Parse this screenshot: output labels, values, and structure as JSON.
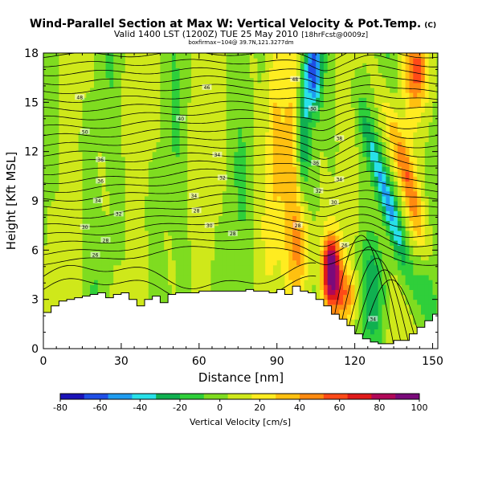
{
  "chart_data": {
    "type": "heatmap",
    "title": "Wind-Parallel Section at Max W: Vertical Velocity & Pot.Temp.",
    "title_mark": "(C)",
    "subtitle": "Valid 1400 LST (1200Z) TUE 25 May 2010",
    "subtitle_suffix": "[18hrFcst@0009z]",
    "subsubtitle": "boxfirmax~104@ 39.7N,121.3277dm",
    "xlabel": "Distance [nm]",
    "ylabel": "Height [Kft MSL]",
    "xlim": [
      0,
      152
    ],
    "ylim": [
      0,
      18
    ],
    "x_ticks": [
      0,
      30,
      60,
      90,
      120,
      150
    ],
    "y_ticks": [
      0,
      3,
      6,
      9,
      12,
      15,
      18
    ],
    "colorbar": {
      "label": "Vertical Velocity [cm/s]",
      "ticks": [
        -80,
        -60,
        -40,
        -20,
        0,
        20,
        40,
        60,
        80,
        100
      ],
      "range": [
        -80,
        100
      ],
      "colors": [
        "#1a12b8",
        "#1f4fe6",
        "#1f9cf0",
        "#28e0e8",
        "#10b050",
        "#2fcf3a",
        "#7fdc20",
        "#cfe81a",
        "#ffec20",
        "#ffc010",
        "#ff8a10",
        "#ff4a18",
        "#e01a1a",
        "#b00858",
        "#7a0a7a"
      ]
    },
    "terrain": {
      "x": [
        0,
        3,
        6,
        9,
        12,
        15,
        18,
        21,
        24,
        27,
        30,
        33,
        36,
        39,
        42,
        45,
        48,
        51,
        54,
        57,
        60,
        63,
        66,
        69,
        72,
        75,
        78,
        81,
        84,
        87,
        90,
        93,
        96,
        99,
        102,
        105,
        108,
        111,
        114,
        117,
        120,
        123,
        126,
        129,
        132,
        135,
        138,
        141,
        144,
        147,
        150,
        152
      ],
      "height_kft": [
        2.2,
        2.6,
        2.9,
        3.0,
        3.1,
        3.2,
        3.3,
        3.4,
        3.1,
        3.3,
        3.4,
        3.0,
        2.6,
        3.0,
        3.2,
        2.8,
        3.3,
        3.4,
        3.4,
        3.4,
        3.5,
        3.5,
        3.5,
        3.5,
        3.5,
        3.5,
        3.6,
        3.5,
        3.5,
        3.4,
        3.6,
        3.3,
        3.8,
        3.5,
        3.4,
        3.0,
        2.6,
        2.1,
        1.8,
        1.4,
        0.9,
        0.6,
        0.4,
        0.3,
        0.3,
        0.5,
        0.5,
        0.9,
        1.3,
        1.7,
        2.1,
        2.4
      ]
    },
    "theta_contour_labels": [
      {
        "x": 14,
        "y": 15.3,
        "text": "48"
      },
      {
        "x": 16,
        "y": 13.2,
        "text": "50"
      },
      {
        "x": 22,
        "y": 11.5,
        "text": "36"
      },
      {
        "x": 22,
        "y": 10.2,
        "text": "36"
      },
      {
        "x": 21,
        "y": 9.0,
        "text": "34"
      },
      {
        "x": 29,
        "y": 8.2,
        "text": "32"
      },
      {
        "x": 16,
        "y": 7.4,
        "text": "30"
      },
      {
        "x": 24,
        "y": 6.6,
        "text": "28"
      },
      {
        "x": 20,
        "y": 5.7,
        "text": "26"
      },
      {
        "x": 63,
        "y": 15.9,
        "text": "46"
      },
      {
        "x": 53,
        "y": 14.0,
        "text": "40"
      },
      {
        "x": 67,
        "y": 11.8,
        "text": "34"
      },
      {
        "x": 69,
        "y": 10.4,
        "text": "32"
      },
      {
        "x": 58,
        "y": 9.3,
        "text": "34"
      },
      {
        "x": 59,
        "y": 8.4,
        "text": "28"
      },
      {
        "x": 64,
        "y": 7.5,
        "text": "30"
      },
      {
        "x": 73,
        "y": 7.0,
        "text": "28"
      },
      {
        "x": 97,
        "y": 16.4,
        "text": "48"
      },
      {
        "x": 104,
        "y": 14.6,
        "text": "30"
      },
      {
        "x": 114,
        "y": 12.8,
        "text": "38"
      },
      {
        "x": 105,
        "y": 11.3,
        "text": "36"
      },
      {
        "x": 114,
        "y": 10.3,
        "text": "34"
      },
      {
        "x": 106,
        "y": 9.6,
        "text": "32"
      },
      {
        "x": 112,
        "y": 8.9,
        "text": "30"
      },
      {
        "x": 98,
        "y": 7.5,
        "text": "28"
      },
      {
        "x": 116,
        "y": 6.3,
        "text": "26"
      },
      {
        "x": 127,
        "y": 1.8,
        "text": "34"
      }
    ]
  }
}
